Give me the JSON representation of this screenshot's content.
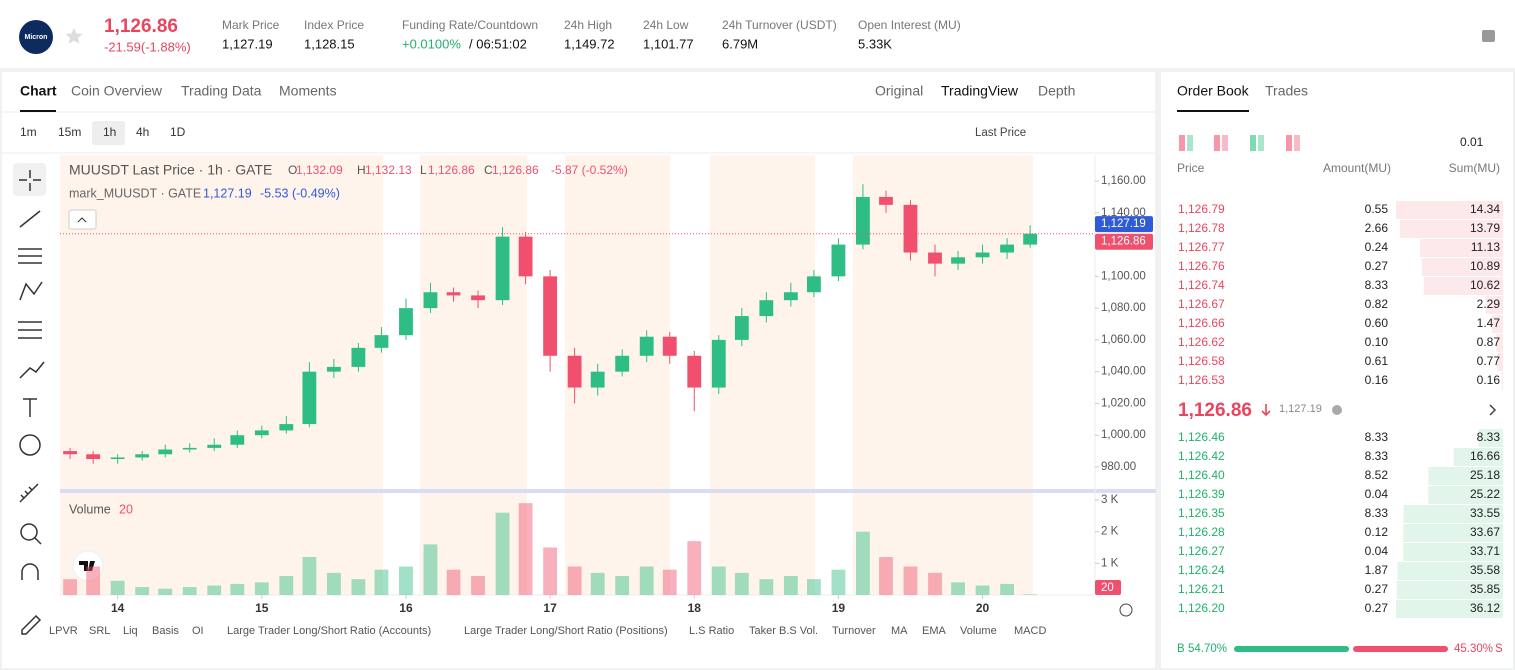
{
  "header": {
    "logo_text": "Micron",
    "price": "1,126.86",
    "change": "-21.59(-1.88%)",
    "stats": [
      {
        "label": "Mark Price",
        "value": "1,127.19"
      },
      {
        "label": "Index Price",
        "value": "1,128.15"
      },
      {
        "label": "Funding Rate/Countdown",
        "value": "+0.0100%",
        "value2": "/ 06:51:02"
      },
      {
        "label": "24h High",
        "value": "1,149.72"
      },
      {
        "label": "24h Low",
        "value": "1,101.77"
      },
      {
        "label": "24h Turnover (USDT)",
        "value": "6.79M"
      },
      {
        "label": "Open Interest (MU)",
        "value": "5.33K"
      }
    ]
  },
  "chart_panel": {
    "tabs": [
      "Chart",
      "Coin Overview",
      "Trading Data",
      "Moments"
    ],
    "views": [
      "Original",
      "TradingView",
      "Depth"
    ],
    "intervals": [
      "1m",
      "15m",
      "1h",
      "4h",
      "1D"
    ],
    "price_type": "Last Price",
    "indicators": [
      "LPVR",
      "SRL",
      "Liq",
      "Basis",
      "OI",
      "Large Trader Long/Short Ratio (Accounts)",
      "Large Trader Long/Short Ratio (Positions)",
      "L.S Ratio",
      "Taker B.S Vol.",
      "Turnover",
      "MA",
      "EMA",
      "Volume",
      "MACD"
    ]
  },
  "chart_data": {
    "type": "candlestick",
    "legend": {
      "title": "MUUSDT Last Price · 1h · GATE",
      "ohlc": [
        {
          "key": "O",
          "value": "1,132.09"
        },
        {
          "key": "H",
          "value": "1,132.13"
        },
        {
          "key": "L",
          "value": "1,126.86"
        },
        {
          "key": "C",
          "value": "1,126.86"
        }
      ],
      "change": "-5.87 (-0.52%)",
      "mark_title": "mark_MUUSDT · GATE",
      "mark_value": "1,127.19",
      "mark_change": "-5.53 (-0.49%)"
    },
    "x": [
      13.67,
      13.83,
      14.0,
      14.17,
      14.33,
      14.5,
      14.67,
      14.83,
      15,
      15.17,
      15.33,
      15.5,
      15.67,
      15.83,
      16,
      16.17,
      16.33,
      16.5,
      16.67,
      16.83,
      17,
      17.17,
      17.33,
      17.5,
      17.67,
      17.83,
      18,
      18.17,
      18.33,
      18.5,
      18.67,
      18.83,
      19,
      19.17,
      19.33,
      19.5,
      19.67,
      19.83,
      20,
      20.17,
      20.33
    ],
    "open": [
      990,
      988,
      985,
      986,
      988,
      991,
      992,
      994,
      1000,
      1003,
      1007,
      1040,
      1043,
      1055,
      1063,
      1080,
      1090,
      1088,
      1085,
      1125,
      1100,
      1050,
      1030,
      1040,
      1050,
      1062,
      1050,
      1030,
      1060,
      1075,
      1085,
      1090,
      1100,
      1120,
      1150,
      1145,
      1115,
      1108,
      1112,
      1115,
      1120
    ],
    "high": [
      992,
      990,
      988,
      990,
      994,
      995,
      998,
      1003,
      1006,
      1012,
      1046,
      1048,
      1058,
      1068,
      1086,
      1096,
      1093,
      1091,
      1131,
      1128,
      1104,
      1055,
      1045,
      1054,
      1066,
      1065,
      1053,
      1063,
      1080,
      1090,
      1096,
      1104,
      1124,
      1158,
      1154,
      1148,
      1120,
      1116,
      1120,
      1124,
      1132.13
    ],
    "low": [
      985,
      982,
      982,
      984,
      986,
      989,
      990,
      992,
      998,
      1001,
      1005,
      1036,
      1040,
      1052,
      1060,
      1077,
      1084,
      1080,
      1082,
      1095,
      1040,
      1020,
      1025,
      1037,
      1046,
      1045,
      1015,
      1026,
      1056,
      1071,
      1081,
      1087,
      1097,
      1117,
      1140,
      1110,
      1100,
      1104,
      1108,
      1111,
      1118
    ],
    "close": [
      988,
      985,
      986,
      988,
      991,
      992,
      994,
      1000,
      1003,
      1007,
      1040,
      1043,
      1055,
      1063,
      1080,
      1090,
      1088,
      1085,
      1125,
      1100,
      1050,
      1030,
      1040,
      1050,
      1062,
      1050,
      1030,
      1060,
      1075,
      1085,
      1090,
      1100,
      1120,
      1150,
      1145,
      1115,
      1108,
      1112,
      1115,
      1120,
      1126.86
    ],
    "volume": [
      500,
      900,
      450,
      250,
      200,
      250,
      300,
      350,
      400,
      600,
      1200,
      700,
      500,
      800,
      900,
      1600,
      800,
      600,
      2600,
      2900,
      1500,
      900,
      700,
      600,
      900,
      800,
      1700,
      900,
      700,
      500,
      600,
      500,
      800,
      2000,
      1200,
      900,
      700,
      400,
      300,
      350,
      20
    ],
    "volume_label": "Volume",
    "up_color": "#2ebd85",
    "down_color": "#f0506e",
    "xlim": [
      13.6,
      20.78
    ],
    "xticks": [
      14,
      15,
      16,
      17,
      18,
      19,
      20
    ],
    "ylim": [
      965.5,
      1176.4
    ],
    "yticks": [
      {
        "value": 980,
        "label": "980.00"
      },
      {
        "value": 1000,
        "label": "1,000.00"
      },
      {
        "value": 1020,
        "label": "1,020.00"
      },
      {
        "value": 1040,
        "label": "1,040.00"
      },
      {
        "value": 1060,
        "label": "1,060.00"
      },
      {
        "value": 1080,
        "label": "1,080.00"
      },
      {
        "value": 1100,
        "label": "1,100.00"
      },
      {
        "value": 1120,
        "label": "1,120.00"
      },
      {
        "value": 1140,
        "label": "1,140.00"
      },
      {
        "value": 1160,
        "label": "1,160.00"
      }
    ],
    "y2lim": [
      0,
      3158
    ],
    "y2ticks": [
      {
        "value": 1000,
        "label": "1 K"
      },
      {
        "value": 2000,
        "label": "2 K"
      },
      {
        "value": 3000,
        "label": "3 K"
      }
    ],
    "mark_price": {
      "value": 1127.19,
      "label": "1,127.19"
    },
    "last_price": {
      "value": 1126.86,
      "label": "1,126.86"
    }
  },
  "order_book": {
    "tabs": [
      "Order Book",
      "Trades"
    ],
    "precision": "0.01",
    "columns": [
      "Price",
      "Amount(MU)",
      "Sum(MU)"
    ],
    "asks": [
      {
        "price": "1,126.79",
        "amount": "0.55",
        "sum": 14.34
      },
      {
        "price": "1,126.78",
        "amount": "2.66",
        "sum": 13.79
      },
      {
        "price": "1,126.77",
        "amount": "0.24",
        "sum": 11.13
      },
      {
        "price": "1,126.76",
        "amount": "0.27",
        "sum": 10.89
      },
      {
        "price": "1,126.74",
        "amount": "8.33",
        "sum": 10.62
      },
      {
        "price": "1,126.67",
        "amount": "0.82",
        "sum": 2.29
      },
      {
        "price": "1,126.66",
        "amount": "0.60",
        "sum": 1.47
      },
      {
        "price": "1,126.62",
        "amount": "0.10",
        "sum": 0.87
      },
      {
        "price": "1,126.58",
        "amount": "0.61",
        "sum": 0.77
      },
      {
        "price": "1,126.53",
        "amount": "0.16",
        "sum": 0.16
      }
    ],
    "last": "1,126.86",
    "mark": "1,127.19",
    "bids": [
      {
        "price": "1,126.46",
        "amount": "8.33",
        "sum": 8.33
      },
      {
        "price": "1,126.42",
        "amount": "8.33",
        "sum": 16.66
      },
      {
        "price": "1,126.40",
        "amount": "8.52",
        "sum": 25.18
      },
      {
        "price": "1,126.39",
        "amount": "0.04",
        "sum": 25.22
      },
      {
        "price": "1,126.35",
        "amount": "8.33",
        "sum": 33.55
      },
      {
        "price": "1,126.28",
        "amount": "0.12",
        "sum": 33.67
      },
      {
        "price": "1,126.27",
        "amount": "0.04",
        "sum": 33.71
      },
      {
        "price": "1,126.24",
        "amount": "1.87",
        "sum": 35.58
      },
      {
        "price": "1,126.21",
        "amount": "0.27",
        "sum": 35.85
      },
      {
        "price": "1,126.20",
        "amount": "0.27",
        "sum": 36.12
      }
    ],
    "buy_key": "B",
    "buy_ratio": {
      "value": 54.7,
      "label": "54.70%"
    },
    "sell_key": "S",
    "sell_ratio": {
      "value": 45.3,
      "label": "45.30%"
    }
  }
}
